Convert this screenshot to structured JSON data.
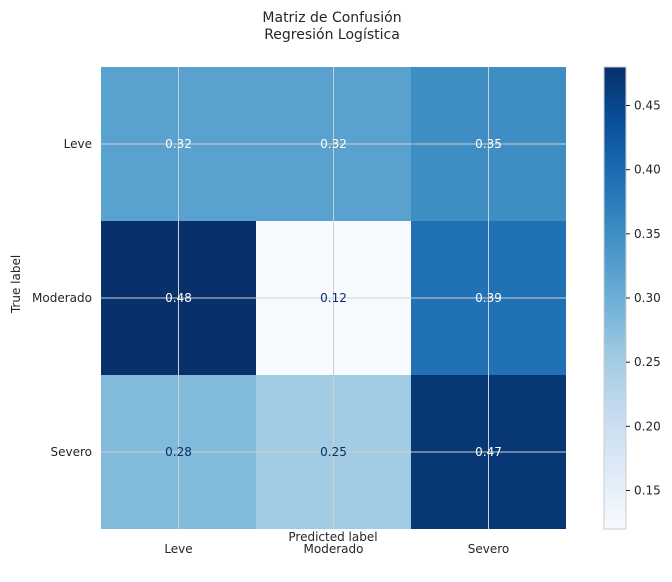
{
  "chart_data": {
    "type": "heatmap",
    "title": "Matriz de Confusión",
    "subtitle": "Regresión Logística",
    "xlabel": "Predicted label",
    "ylabel": "True label",
    "x_categories": [
      "Leve",
      "Moderado",
      "Severo"
    ],
    "y_categories": [
      "Leve",
      "Moderado",
      "Severo"
    ],
    "values": [
      [
        0.32,
        0.32,
        0.35
      ],
      [
        0.48,
        0.12,
        0.39
      ],
      [
        0.28,
        0.25,
        0.47
      ]
    ],
    "value_labels": [
      [
        "0.32",
        "0.32",
        "0.35"
      ],
      [
        "0.48",
        "0.12",
        "0.39"
      ],
      [
        "0.28",
        "0.25",
        "0.47"
      ]
    ],
    "colormap": "Blues",
    "colorbar": {
      "range": [
        0.12,
        0.48
      ],
      "ticks": [
        0.15,
        0.2,
        0.25,
        0.3,
        0.35,
        0.4,
        0.45
      ],
      "tick_labels": [
        "0.15",
        "0.20",
        "0.25",
        "0.30",
        "0.35",
        "0.40",
        "0.45"
      ]
    },
    "grid": true
  }
}
